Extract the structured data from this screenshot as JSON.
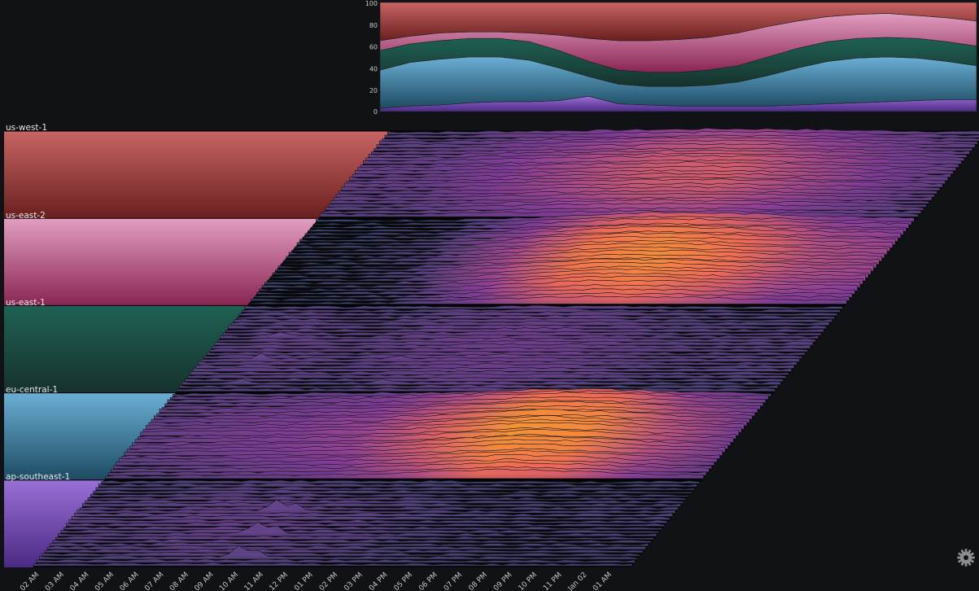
{
  "chart_data": {
    "type": "area",
    "title": "",
    "y_ticks": [
      "100",
      "80",
      "60",
      "40",
      "20",
      "0"
    ],
    "ylim": [
      0,
      100
    ],
    "x_ticks": [
      "02 AM",
      "03 AM",
      "04 AM",
      "05 AM",
      "06 AM",
      "07 AM",
      "08 AM",
      "09 AM",
      "10 AM",
      "11 AM",
      "12 PM",
      "01 PM",
      "02 PM",
      "03 PM",
      "04 PM",
      "05 PM",
      "06 PM",
      "07 PM",
      "08 PM",
      "09 PM",
      "10 PM",
      "11 PM",
      "Jan 02",
      "01 AM"
    ],
    "stack_order": [
      "ap-southeast-1",
      "eu-central-1",
      "us-east-1",
      "us-east-2",
      "us-west-1"
    ],
    "stacked_cumulative_percent": {
      "x_fraction": [
        0,
        0.05,
        0.1,
        0.15,
        0.2,
        0.25,
        0.3,
        0.35,
        0.4,
        0.45,
        0.5,
        0.55,
        0.6,
        0.65,
        0.7,
        0.75,
        0.8,
        0.85,
        0.9,
        0.95,
        1
      ],
      "ap-southeast-1": [
        3,
        5,
        6,
        8,
        9,
        9,
        10,
        14,
        7,
        6,
        5,
        5,
        5,
        5,
        6,
        7,
        8,
        9,
        10,
        11,
        11
      ],
      "eu-central-1": [
        38,
        45,
        48,
        50,
        50,
        47,
        40,
        32,
        25,
        23,
        23,
        24,
        27,
        33,
        40,
        46,
        49,
        50,
        49,
        46,
        42
      ],
      "us-east-1": [
        56,
        62,
        65,
        67,
        67,
        64,
        56,
        46,
        38,
        36,
        36,
        38,
        42,
        50,
        58,
        64,
        67,
        68,
        67,
        64,
        60
      ],
      "us-east-2": [
        65,
        69,
        72,
        73,
        73,
        72,
        70,
        67,
        65,
        65,
        66,
        68,
        72,
        78,
        83,
        87,
        89,
        90,
        88,
        86,
        83
      ],
      "us-west-1": [
        100,
        100,
        100,
        100,
        100,
        100,
        100,
        100,
        100,
        100,
        100,
        100,
        100,
        100,
        100,
        100,
        100,
        100,
        100,
        100,
        100
      ]
    },
    "groups": [
      {
        "name": "us-west-1",
        "color_top": "#c86464",
        "color_bottom": "#6a1f1f",
        "intensity": [
          0.2,
          0.2,
          0.3,
          0.4,
          0.5,
          0.6,
          0.55,
          0.4,
          0.3,
          0.2
        ],
        "spikes": []
      },
      {
        "name": "us-east-2",
        "color_top": "#e29ec0",
        "color_bottom": "#8a2553",
        "intensity": [
          0.05,
          0.05,
          0.1,
          0.3,
          0.6,
          0.9,
          0.85,
          0.65,
          0.45,
          0.4
        ],
        "spikes": []
      },
      {
        "name": "us-east-1",
        "color_top": "#1f6154",
        "color_bottom": "#16322d",
        "intensity": [
          0.15,
          0.2,
          0.15,
          0.2,
          0.25,
          0.25,
          0.2,
          0.15,
          0.15,
          0.15
        ],
        "spikes": [
          [
            0.1,
            0.3
          ],
          [
            0.33,
            0.2
          ]
        ]
      },
      {
        "name": "eu-central-1",
        "color_top": "#6bafd5",
        "color_bottom": "#1d4b62",
        "intensity": [
          0.2,
          0.25,
          0.3,
          0.35,
          0.45,
          0.75,
          1.0,
          0.8,
          0.45,
          0.3
        ],
        "spikes": []
      },
      {
        "name": "ap-southeast-1",
        "color_top": "#9a6fd6",
        "color_bottom": "#4a2a83",
        "intensity": [
          0.15,
          0.15,
          0.2,
          0.2,
          0.15,
          0.15,
          0.1,
          0.1,
          0.1,
          0.1
        ],
        "spikes": [
          [
            0.33,
            0.8
          ],
          [
            0.36,
            0.6
          ]
        ]
      }
    ]
  },
  "legend_labels": {
    "us_west_1": "us-west-1",
    "us_east_2": "us-east-2",
    "us_east_1": "us-east-1",
    "eu_central_1": "eu-central-1",
    "ap_southeast_1": "ap-southeast-1"
  },
  "icons": {
    "settings": "gear-icon"
  },
  "colors": {
    "background": "#111216",
    "ridge_low": "#3a4a72",
    "ridge_mid": "#8c3fa0",
    "ridge_high": "#ef6a57",
    "ridge_peak": "#f6a22b"
  }
}
